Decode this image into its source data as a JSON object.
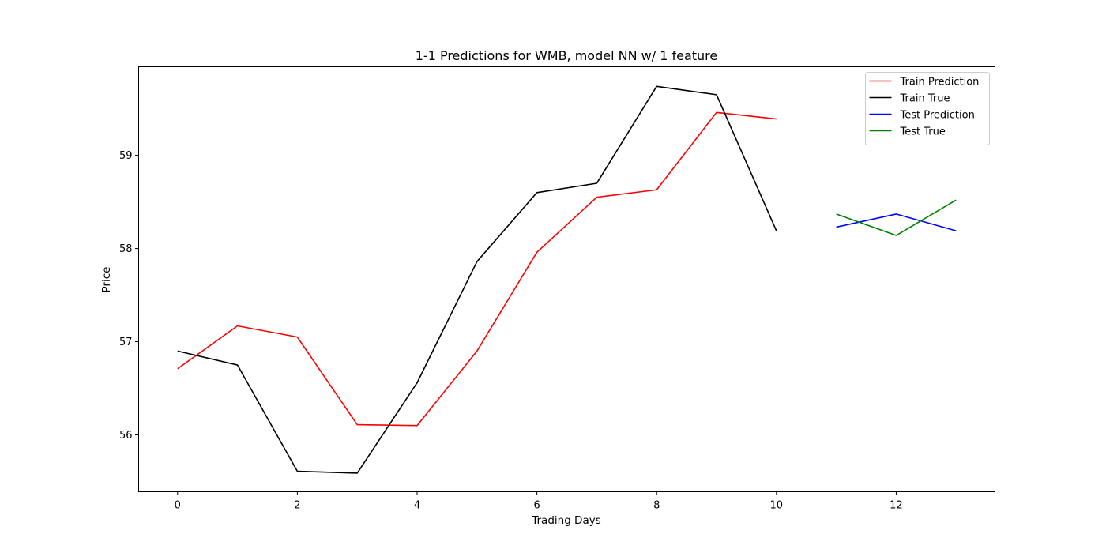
{
  "chart_data": {
    "type": "line",
    "title": "1-1 Predictions for WMB, model NN w/ 1 feature",
    "xlabel": "Trading Days",
    "ylabel": "Price",
    "xlim": [
      -0.65,
      13.65
    ],
    "ylim": [
      55.39,
      59.95
    ],
    "xticks": [
      0,
      2,
      4,
      6,
      8,
      10,
      12
    ],
    "xtick_labels": [
      "0",
      "2",
      "4",
      "6",
      "8",
      "10",
      "12"
    ],
    "yticks": [
      56,
      57,
      58,
      59
    ],
    "ytick_labels": [
      "56",
      "57",
      "58",
      "59"
    ],
    "grid": false,
    "legend_position": "top-right",
    "series": [
      {
        "name": "Train Prediction",
        "color": "#ff0000",
        "x": [
          0,
          1,
          2,
          3,
          4,
          5,
          6,
          7,
          8,
          9,
          10
        ],
        "y": [
          56.71,
          57.17,
          57.05,
          56.11,
          56.1,
          56.9,
          57.96,
          58.55,
          58.63,
          59.46,
          59.39
        ]
      },
      {
        "name": "Train True",
        "color": "#000000",
        "x": [
          0,
          1,
          2,
          3,
          4,
          5,
          6,
          7,
          8,
          9,
          10
        ],
        "y": [
          56.9,
          56.75,
          55.61,
          55.59,
          56.56,
          57.86,
          58.6,
          58.7,
          59.74,
          59.65,
          58.19
        ]
      },
      {
        "name": "Test Prediction",
        "color": "#0000ff",
        "x": [
          11,
          12,
          13
        ],
        "y": [
          58.23,
          58.37,
          58.19
        ]
      },
      {
        "name": "Test True",
        "color": "#008000",
        "x": [
          11,
          12,
          13
        ],
        "y": [
          58.37,
          58.14,
          58.52
        ]
      }
    ]
  }
}
